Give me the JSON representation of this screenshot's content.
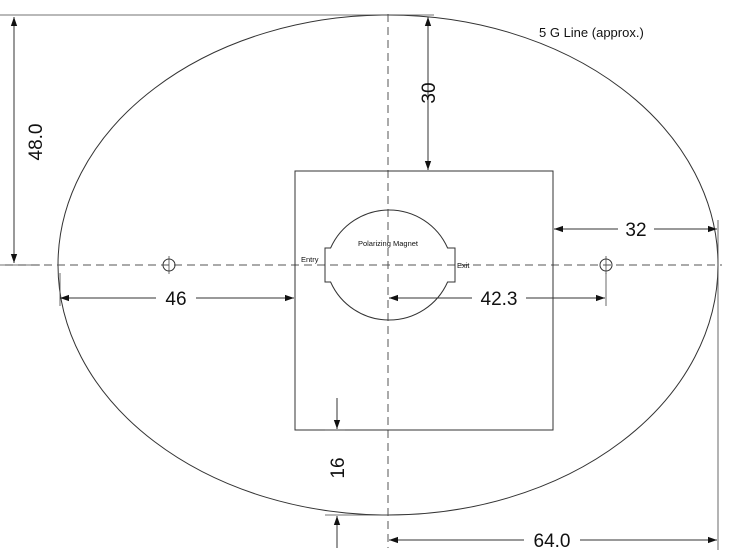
{
  "diagram": {
    "field_line_label": "5 G Line (approx.)",
    "magnet_label": "Polarizing Magnet",
    "entry_label": "Entry",
    "exit_label": "Exit",
    "dimensions": {
      "half_height": "48.0",
      "top_to_box": "30",
      "box_to_field_right": "32",
      "left_to_box": "46",
      "center_to_right_hole": "42.3",
      "box_to_field_bottom": "16",
      "half_width": "64.0"
    }
  }
}
